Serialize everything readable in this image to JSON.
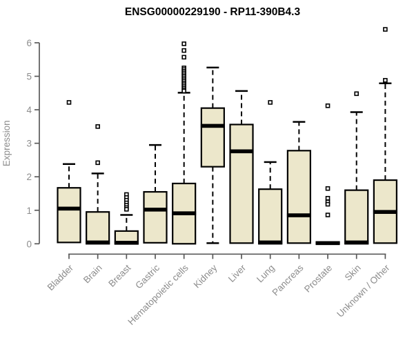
{
  "window": {
    "background": "#FFFFFF"
  },
  "chart_data": {
    "type": "boxplot",
    "title": "ENSG00000229190 - RP11-390B4.3",
    "ylabel": "Expression",
    "xlabel": "",
    "ylim": [
      0,
      6.5
    ],
    "yticks": [
      0,
      1,
      2,
      3,
      4,
      5,
      6
    ],
    "grid": false,
    "legend": null,
    "colors": {
      "box_fill": "#ECE7CB",
      "box_border": "#000000",
      "median": "#000000",
      "whisker": "#000000",
      "outlier": "#000000",
      "axis": "#595959",
      "tick_label": "#8C8C8C",
      "title": "#000000",
      "background": "#FFFFFF"
    },
    "categories": [
      "Bladder",
      "Brain",
      "Breast",
      "Gastric",
      "Hematopoietic cells",
      "Kidney",
      "Liver",
      "Lung",
      "Pancreas",
      "Prostate",
      "Skin",
      "Unknown / Other"
    ],
    "series": [
      {
        "name": "Bladder",
        "whisker_low": 0,
        "q1": 0.04,
        "median": 1.05,
        "q3": 1.67,
        "whisker_high": 2.38,
        "outliers": [
          4.22
        ]
      },
      {
        "name": "Brain",
        "whisker_low": 0,
        "q1": 0.0,
        "median": 0.04,
        "q3": 0.95,
        "whisker_high": 2.1,
        "outliers": [
          3.5,
          2.42
        ]
      },
      {
        "name": "Breast",
        "whisker_low": 0,
        "q1": 0.0,
        "median": 0.03,
        "q3": 0.38,
        "whisker_high": 0.86,
        "outliers": [
          1.47,
          1.38,
          1.3,
          1.22,
          1.15,
          1.08,
          1.03
        ]
      },
      {
        "name": "Gastric",
        "whisker_low": 0,
        "q1": 0.03,
        "median": 1.02,
        "q3": 1.55,
        "whisker_high": 2.95,
        "outliers": []
      },
      {
        "name": "Hematopoietic cells",
        "whisker_low": 0,
        "q1": 0.0,
        "median": 0.91,
        "q3": 1.8,
        "whisker_high": 4.51,
        "outliers": [
          5.97,
          5.77,
          5.57,
          5.25,
          5.2,
          5.15,
          5.1,
          5.05,
          5.0,
          4.95,
          4.9,
          4.85,
          4.8,
          4.75,
          4.7,
          4.65,
          4.6,
          4.56
        ]
      },
      {
        "name": "Kidney",
        "whisker_low": 0.02,
        "q1": 2.3,
        "median": 3.52,
        "q3": 4.05,
        "whisker_high": 5.26,
        "outliers": []
      },
      {
        "name": "Liver",
        "whisker_low": 0,
        "q1": 0.02,
        "median": 2.76,
        "q3": 3.56,
        "whisker_high": 4.56,
        "outliers": []
      },
      {
        "name": "Lung",
        "whisker_low": 0,
        "q1": 0.0,
        "median": 0.04,
        "q3": 1.63,
        "whisker_high": 2.44,
        "outliers": [
          4.22
        ]
      },
      {
        "name": "Pancreas",
        "whisker_low": 0,
        "q1": 0.02,
        "median": 0.85,
        "q3": 2.78,
        "whisker_high": 3.64,
        "outliers": []
      },
      {
        "name": "Prostate",
        "whisker_low": 0,
        "q1": 0.0,
        "median": 0.02,
        "q3": 0.05,
        "whisker_high": 0.05,
        "outliers": [
          4.12,
          1.65,
          1.36,
          1.25,
          1.18,
          0.86
        ]
      },
      {
        "name": "Skin",
        "whisker_low": 0,
        "q1": 0.0,
        "median": 0.04,
        "q3": 1.6,
        "whisker_high": 3.93,
        "outliers": [
          4.48
        ]
      },
      {
        "name": "Unknown / Other",
        "whisker_low": 0,
        "q1": 0.02,
        "median": 0.95,
        "q3": 1.9,
        "whisker_high": 4.79,
        "outliers": [
          6.4,
          4.88
        ]
      }
    ]
  }
}
